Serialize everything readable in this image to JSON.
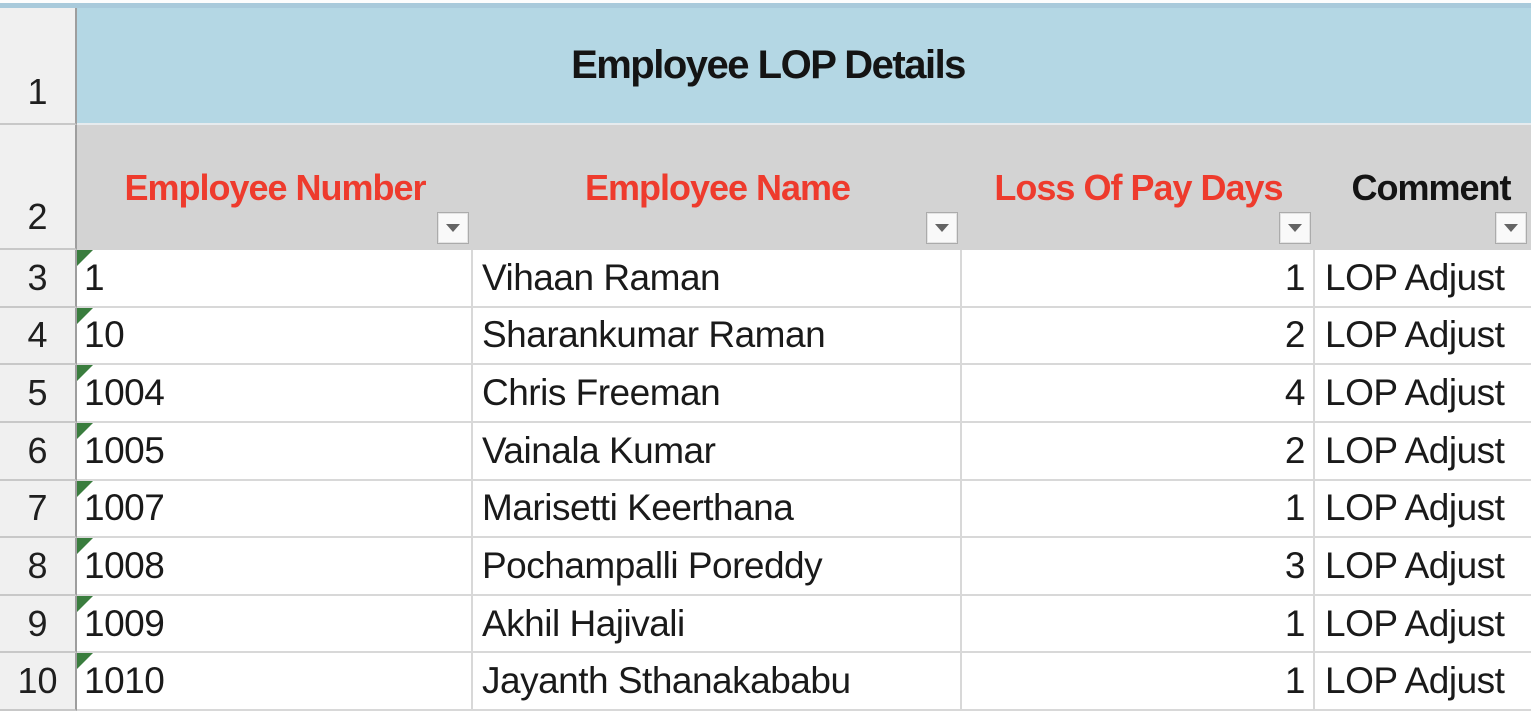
{
  "sheet": {
    "title": "Employee LOP Details",
    "columns": [
      {
        "label": "Employee Number",
        "text_color": "#ee3b2d"
      },
      {
        "label": "Employee Name",
        "text_color": "#ee3b2d"
      },
      {
        "label": "Loss Of Pay Days",
        "text_color": "#ee3b2d"
      },
      {
        "label": "Comment",
        "text_color": "#141414"
      }
    ],
    "row_headers": {
      "r1": "1",
      "r2": "2"
    },
    "rows": [
      {
        "row": "3",
        "employee_number": "1",
        "employee_name": "Vihaan Raman",
        "lop_days": "1",
        "comment": "LOP Adjust"
      },
      {
        "row": "4",
        "employee_number": "10",
        "employee_name": "Sharankumar Raman",
        "lop_days": "2",
        "comment": "LOP Adjust"
      },
      {
        "row": "5",
        "employee_number": "1004",
        "employee_name": "Chris Freeman",
        "lop_days": "4",
        "comment": "LOP Adjust"
      },
      {
        "row": "6",
        "employee_number": "1005",
        "employee_name": "Vainala Kumar",
        "lop_days": "2",
        "comment": "LOP Adjust"
      },
      {
        "row": "7",
        "employee_number": "1007",
        "employee_name": "Marisetti Keerthana",
        "lop_days": "1",
        "comment": "LOP Adjust"
      },
      {
        "row": "8",
        "employee_number": "1008",
        "employee_name": "Pochampalli Poreddy",
        "lop_days": "3",
        "comment": "LOP Adjust"
      },
      {
        "row": "9",
        "employee_number": "1009",
        "employee_name": "Akhil Hajivali",
        "lop_days": "1",
        "comment": "LOP Adjust"
      },
      {
        "row": "10",
        "employee_number": "1010",
        "employee_name": "Jayanth Sthanakababu",
        "lop_days": "1",
        "comment": "LOP Adjust"
      }
    ],
    "icons": {
      "filter": "chevron-down-icon",
      "number_error": "error-indicator-triangle-icon"
    },
    "colors": {
      "title_bg": "#b4d7e4",
      "header_bg": "#d3d3d3",
      "header_red_text": "#ee3b2d",
      "gutter_bg": "#f0f0f0",
      "gridline": "#d8d8d8",
      "error_green": "#3a7d3e"
    }
  }
}
